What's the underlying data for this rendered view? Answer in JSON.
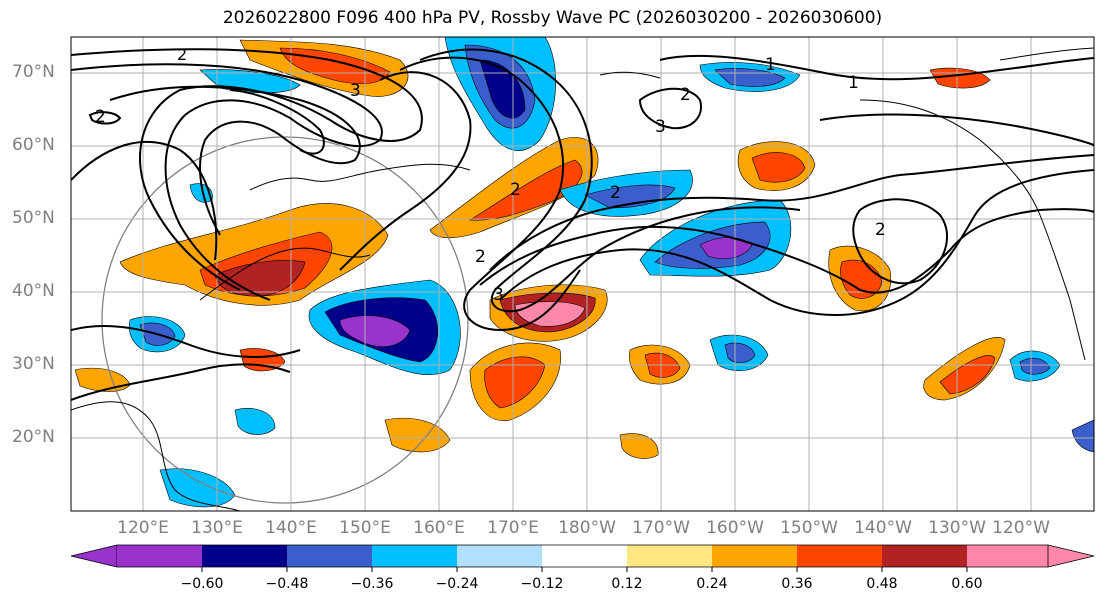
{
  "title": "2026022800 F096 400 hPa PV, Rossby Wave PC (2026030200 - 2026030600)",
  "lat_labels": [
    "70°N",
    "60°N",
    "50°N",
    "40°N",
    "30°N",
    "20°N"
  ],
  "lon_labels": [
    "120°E",
    "130°E",
    "140°E",
    "150°E",
    "160°E",
    "170°E",
    "180°W",
    "170°W",
    "160°W",
    "150°W",
    "140°W",
    "130°W",
    "120°W"
  ],
  "contour_labels": [
    "2",
    "2",
    "3",
    "1",
    "1",
    "2",
    "3",
    "2",
    "2",
    "2",
    "3",
    "2"
  ],
  "colorbar": {
    "colors": [
      "#9933cc",
      "#00008b",
      "#3a5fcd",
      "#00bfff",
      "#b0e0ff",
      "#ffffff",
      "#ffe680",
      "#ffa500",
      "#ff4500",
      "#b22222",
      "#ff88aa"
    ],
    "tick_labels": [
      "−0.60",
      "−0.48",
      "−0.36",
      "−0.24",
      "−0.12",
      "0.12",
      "0.24",
      "0.36",
      "0.48",
      "0.60"
    ]
  }
}
